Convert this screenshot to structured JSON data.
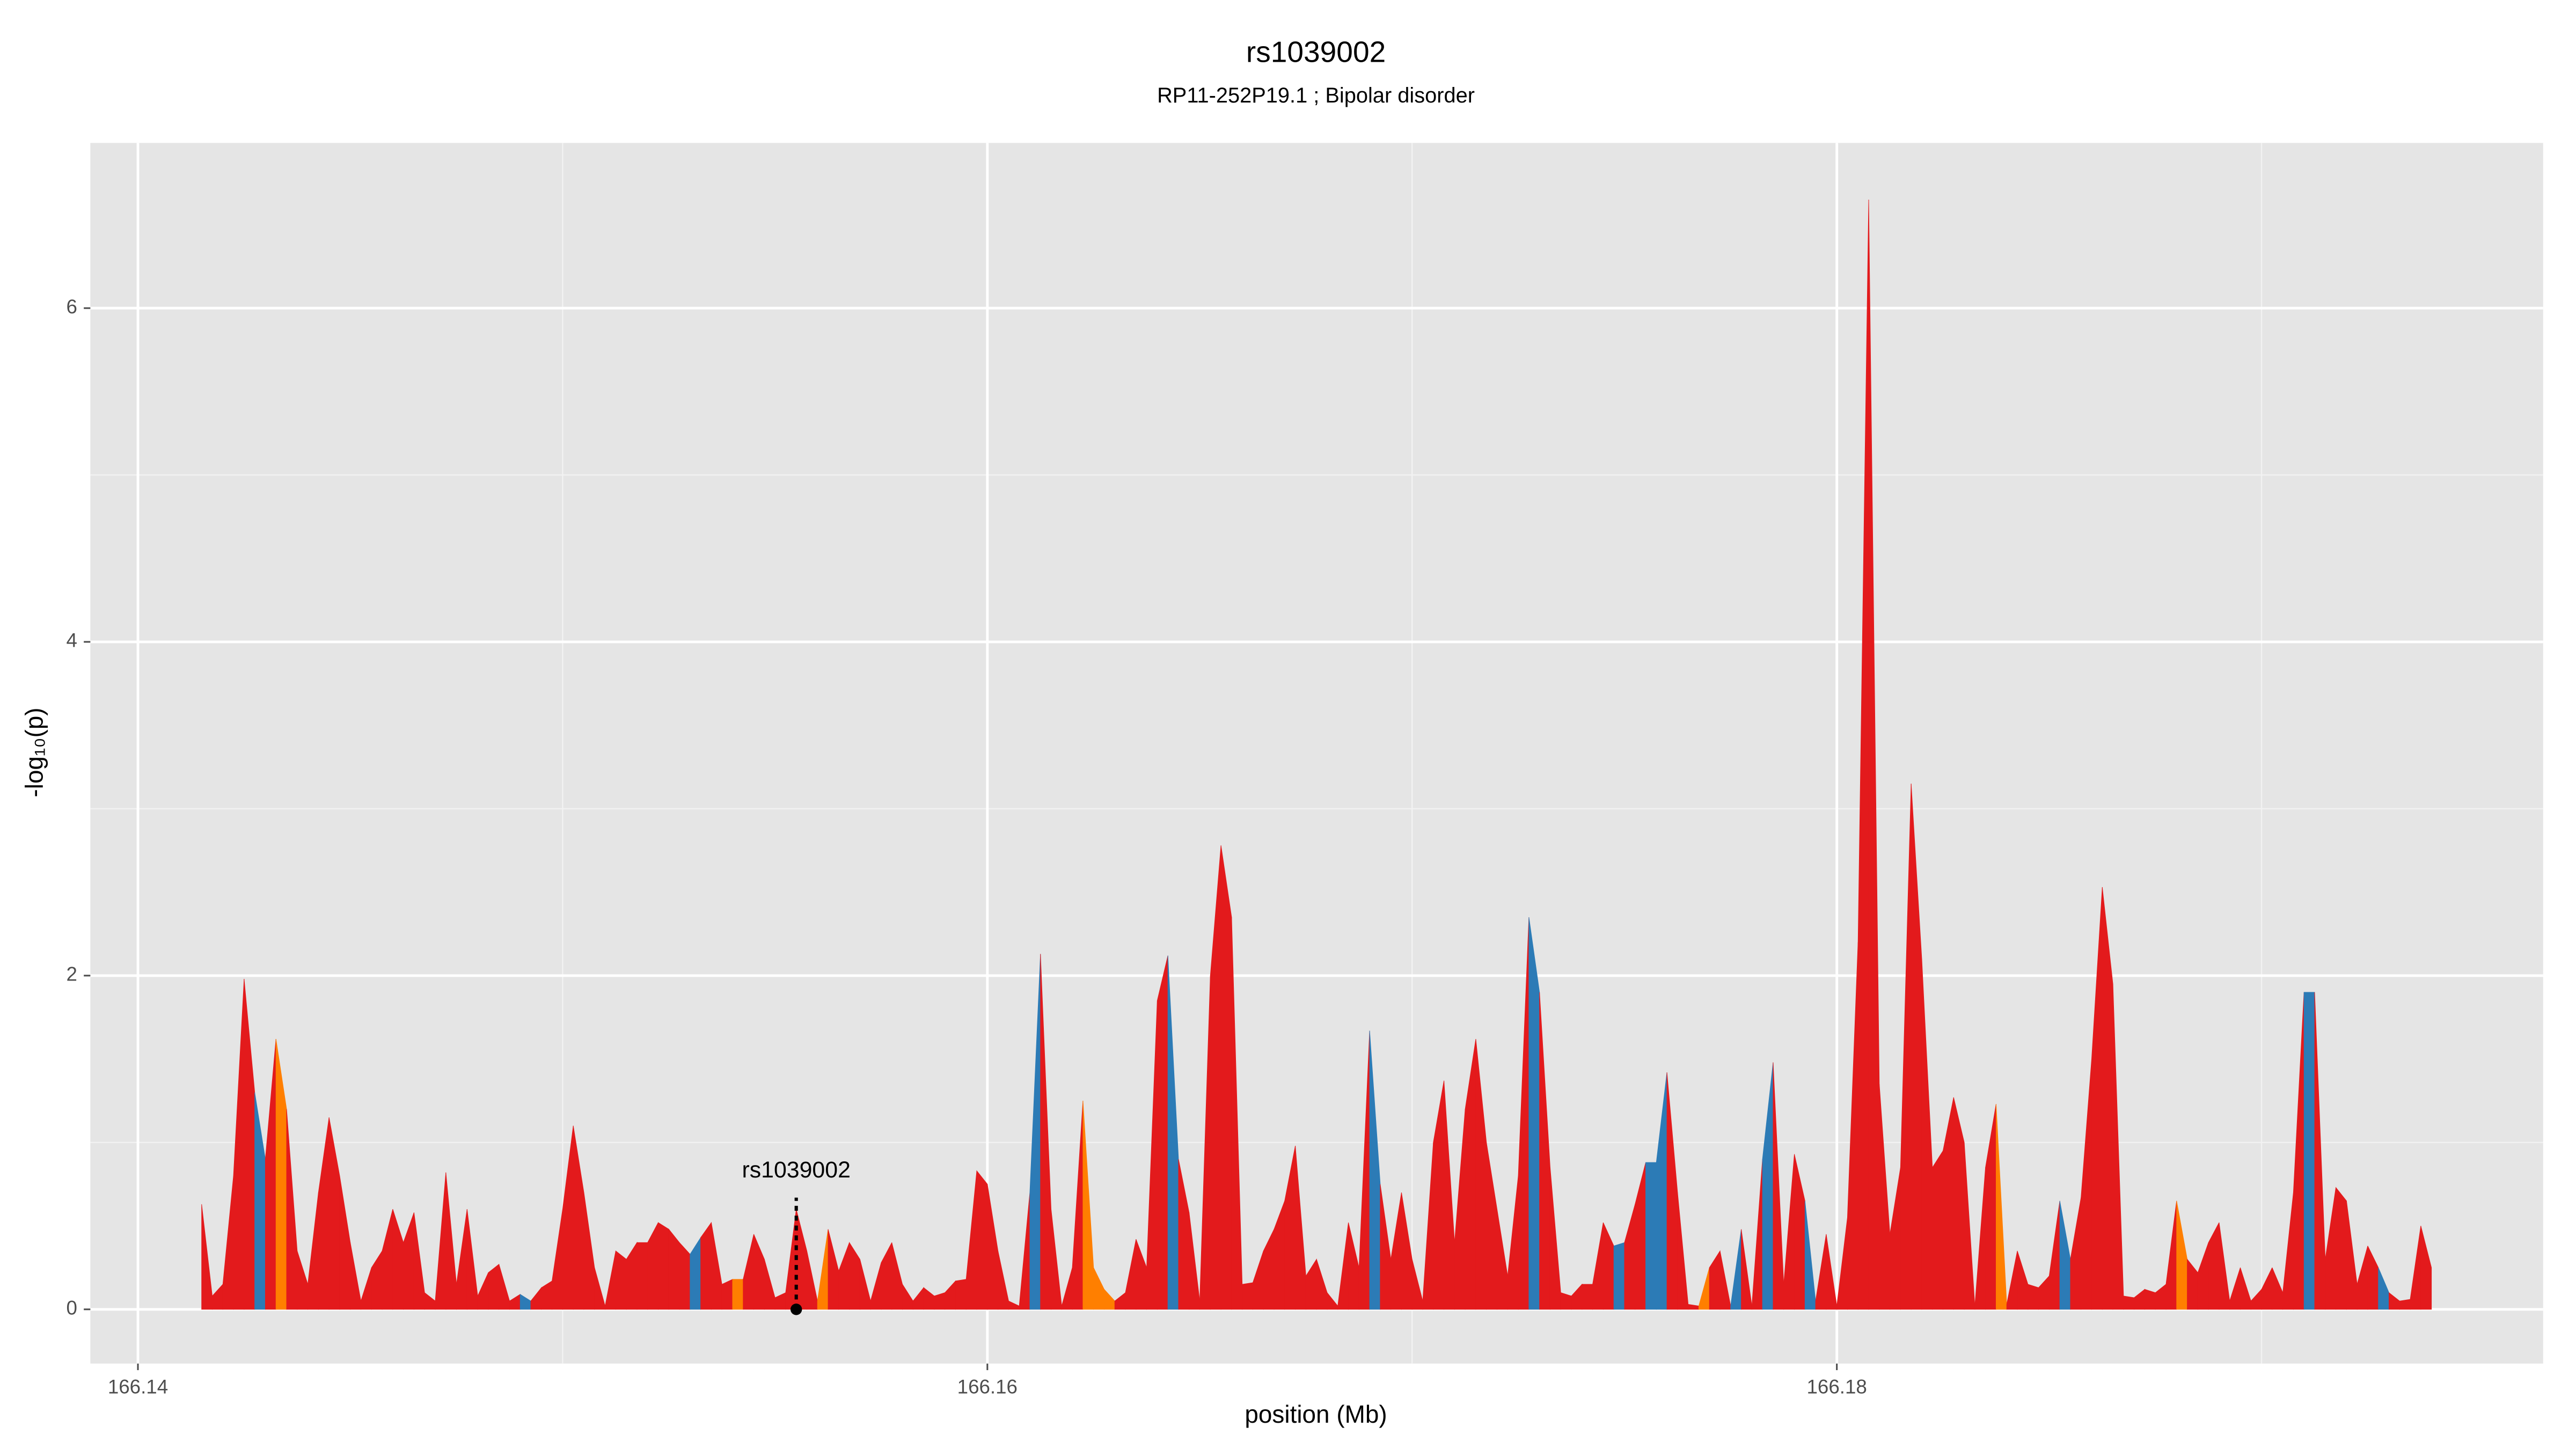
{
  "chart_data": {
    "type": "area",
    "title": "rs1039002",
    "subtitle": "RP11-252P19.1 ; Bipolar disorder",
    "xlabel": "position (Mb)",
    "ylabel": "-log₁₀(p)",
    "xlim": [
      166.13888,
      166.19663
    ],
    "ylim": [
      -0.325,
      6.99
    ],
    "xticks": [
      166.14,
      166.16,
      166.18
    ],
    "yticks": [
      0,
      2,
      4,
      6
    ],
    "grid": true,
    "background": "#e5e5e5",
    "annotation": {
      "text": "rs1039002",
      "x": 166.1555,
      "y": 0
    },
    "x": [
      166.1415,
      166.14175,
      166.142,
      166.14225,
      166.1425,
      166.14275,
      166.143,
      166.14325,
      166.1435,
      166.14375,
      166.144,
      166.14425,
      166.1445,
      166.14475,
      166.145,
      166.14525,
      166.1455,
      166.14575,
      166.146,
      166.14625,
      166.1465,
      166.14675,
      166.147,
      166.14725,
      166.1475,
      166.14775,
      166.148,
      166.14825,
      166.1485,
      166.14875,
      166.149,
      166.14925,
      166.1495,
      166.14975,
      166.15,
      166.15025,
      166.1505,
      166.15075,
      166.151,
      166.15125,
      166.1515,
      166.15175,
      166.152,
      166.15225,
      166.1525,
      166.15275,
      166.153,
      166.15325,
      166.1535,
      166.15375,
      166.154,
      166.15425,
      166.1545,
      166.15475,
      166.155,
      166.15525,
      166.1555,
      166.15575,
      166.156,
      166.15625,
      166.1565,
      166.15675,
      166.157,
      166.15725,
      166.1575,
      166.15775,
      166.158,
      166.15825,
      166.1585,
      166.15875,
      166.159,
      166.15925,
      166.1595,
      166.15975,
      166.16,
      166.16025,
      166.1605,
      166.16075,
      166.161,
      166.16125,
      166.1615,
      166.16175,
      166.162,
      166.16225,
      166.1625,
      166.16275,
      166.163,
      166.16325,
      166.1635,
      166.16375,
      166.164,
      166.16425,
      166.1645,
      166.16475,
      166.165,
      166.16525,
      166.1655,
      166.16575,
      166.166,
      166.16625,
      166.1665,
      166.16675,
      166.167,
      166.16725,
      166.1675,
      166.16775,
      166.168,
      166.16825,
      166.1685,
      166.16875,
      166.169,
      166.16925,
      166.1695,
      166.16975,
      166.17,
      166.17025,
      166.1705,
      166.17075,
      166.171,
      166.17125,
      166.1715,
      166.17175,
      166.172,
      166.17225,
      166.1725,
      166.17275,
      166.173,
      166.17325,
      166.1735,
      166.17375,
      166.174,
      166.17425,
      166.1745,
      166.17475,
      166.175,
      166.17525,
      166.1755,
      166.17575,
      166.176,
      166.17625,
      166.1765,
      166.17675,
      166.177,
      166.17725,
      166.1775,
      166.17775,
      166.178,
      166.17825,
      166.1785,
      166.17875,
      166.179,
      166.17925,
      166.1795,
      166.17975,
      166.18,
      166.18025,
      166.1805,
      166.18075,
      166.181,
      166.18125,
      166.1815,
      166.18175,
      166.182,
      166.18225,
      166.1825,
      166.18275,
      166.183,
      166.18325,
      166.1835,
      166.18375,
      166.184,
      166.18425,
      166.1845,
      166.18475,
      166.185,
      166.18525,
      166.1855,
      166.18575,
      166.186,
      166.18625,
      166.1865,
      166.18675,
      166.187,
      166.18725,
      166.1875,
      166.18775,
      166.188,
      166.18825,
      166.1885,
      166.18875,
      166.189,
      166.18925,
      166.1895,
      166.18975,
      166.19,
      166.19025,
      166.1905,
      166.19075,
      166.191,
      166.19125,
      166.1915,
      166.19175,
      166.192,
      166.19225,
      166.1925,
      166.19275,
      166.193,
      166.19325,
      166.1935,
      166.19375,
      166.194
    ],
    "values": [
      0.63,
      0.08,
      0.15,
      0.8,
      1.98,
      1.3,
      0.9,
      1.62,
      1.2,
      0.35,
      0.15,
      0.7,
      1.15,
      0.8,
      0.4,
      0.05,
      0.25,
      0.35,
      0.6,
      0.4,
      0.58,
      0.1,
      0.05,
      0.82,
      0.15,
      0.6,
      0.08,
      0.22,
      0.27,
      0.05,
      0.09,
      0.05,
      0.13,
      0.17,
      0.6,
      1.1,
      0.7,
      0.25,
      0.02,
      0.35,
      0.3,
      0.4,
      0.4,
      0.52,
      0.48,
      0.4,
      0.33,
      0.43,
      0.52,
      0.15,
      0.18,
      0.18,
      0.45,
      0.3,
      0.07,
      0.1,
      0.6,
      0.35,
      0.05,
      0.48,
      0.23,
      0.4,
      0.3,
      0.05,
      0.28,
      0.4,
      0.15,
      0.05,
      0.13,
      0.08,
      0.1,
      0.17,
      0.18,
      0.83,
      0.75,
      0.35,
      0.05,
      0.02,
      0.7,
      2.13,
      0.6,
      0.02,
      0.25,
      1.25,
      0.25,
      0.12,
      0.05,
      0.1,
      0.42,
      0.25,
      1.85,
      2.12,
      0.9,
      0.58,
      0.05,
      2.0,
      2.78,
      2.35,
      0.15,
      0.16,
      0.35,
      0.48,
      0.65,
      0.98,
      0.2,
      0.3,
      0.1,
      0.02,
      0.52,
      0.25,
      1.67,
      0.75,
      0.3,
      0.7,
      0.3,
      0.05,
      1.0,
      1.37,
      0.4,
      1.2,
      1.62,
      1.0,
      0.6,
      0.2,
      0.8,
      2.35,
      1.9,
      0.85,
      0.1,
      0.08,
      0.15,
      0.15,
      0.52,
      0.38,
      0.4,
      0.63,
      0.88,
      0.88,
      1.42,
      0.7,
      0.03,
      0.02,
      0.25,
      0.35,
      0.02,
      0.48,
      0.02,
      0.9,
      1.48,
      0.15,
      0.93,
      0.65,
      0.05,
      0.45,
      0.02,
      0.55,
      2.2,
      6.65,
      1.35,
      0.45,
      0.85,
      3.15,
      2.1,
      0.85,
      0.95,
      1.27,
      1.0,
      0.02,
      0.85,
      1.23,
      0.03,
      0.35,
      0.15,
      0.13,
      0.2,
      0.65,
      0.3,
      0.67,
      1.5,
      2.53,
      1.95,
      0.08,
      0.07,
      0.12,
      0.1,
      0.15,
      0.65,
      0.3,
      0.22,
      0.4,
      0.52,
      0.05,
      0.25,
      0.05,
      0.12,
      0.25,
      0.1,
      0.7,
      1.9,
      1.9,
      0.3,
      0.73,
      0.65,
      0.15,
      0.38,
      0.25,
      0.1,
      0.05,
      0.06,
      0.5,
      0.25
    ],
    "colors": [
      "#e31a1c",
      "#e31a1c",
      "#e31a1c",
      "#e31a1c",
      "#e31a1c",
      "#2c7bb6",
      "#e31a1c",
      "#ff7f00",
      "#e31a1c",
      "#e31a1c",
      "#e31a1c",
      "#e31a1c",
      "#e31a1c",
      "#e31a1c",
      "#e31a1c",
      "#e31a1c",
      "#e31a1c",
      "#e31a1c",
      "#e31a1c",
      "#e31a1c",
      "#e31a1c",
      "#e31a1c",
      "#e31a1c",
      "#e31a1c",
      "#e31a1c",
      "#e31a1c",
      "#e31a1c",
      "#e31a1c",
      "#e31a1c",
      "#e31a1c",
      "#2c7bb6",
      "#e31a1c",
      "#e31a1c",
      "#e31a1c",
      "#e31a1c",
      "#e31a1c",
      "#e31a1c",
      "#e31a1c",
      "#e31a1c",
      "#e31a1c",
      "#e31a1c",
      "#e31a1c",
      "#e31a1c",
      "#e31a1c",
      "#e31a1c",
      "#e31a1c",
      "#2c7bb6",
      "#e31a1c",
      "#e31a1c",
      "#e31a1c",
      "#ff7f00",
      "#e31a1c",
      "#e31a1c",
      "#e31a1c",
      "#e31a1c",
      "#e31a1c",
      "#e31a1c",
      "#e31a1c",
      "#ff7f00",
      "#e31a1c",
      "#e31a1c",
      "#e31a1c",
      "#e31a1c",
      "#e31a1c",
      "#e31a1c",
      "#e31a1c",
      "#e31a1c",
      "#e31a1c",
      "#e31a1c",
      "#e31a1c",
      "#e31a1c",
      "#e31a1c",
      "#e31a1c",
      "#e31a1c",
      "#e31a1c",
      "#e31a1c",
      "#e31a1c",
      "#e31a1c",
      "#2c7bb6",
      "#e31a1c",
      "#e31a1c",
      "#e31a1c",
      "#e31a1c",
      "#ff7f00",
      "#ff7f00",
      "#ff7f00",
      "#e31a1c",
      "#e31a1c",
      "#e31a1c",
      "#e31a1c",
      "#e31a1c",
      "#2c7bb6",
      "#e31a1c",
      "#e31a1c",
      "#e31a1c",
      "#e31a1c",
      "#e31a1c",
      "#e31a1c",
      "#e31a1c",
      "#e31a1c",
      "#e31a1c",
      "#e31a1c",
      "#e31a1c",
      "#e31a1c",
      "#e31a1c",
      "#e31a1c",
      "#e31a1c",
      "#e31a1c",
      "#e31a1c",
      "#e31a1c",
      "#2c7bb6",
      "#e31a1c",
      "#e31a1c",
      "#e31a1c",
      "#e31a1c",
      "#e31a1c",
      "#e31a1c",
      "#e31a1c",
      "#e31a1c",
      "#e31a1c",
      "#e31a1c",
      "#e31a1c",
      "#e31a1c",
      "#e31a1c",
      "#e31a1c",
      "#2c7bb6",
      "#e31a1c",
      "#e31a1c",
      "#e31a1c",
      "#e31a1c",
      "#e31a1c",
      "#e31a1c",
      "#e31a1c",
      "#2c7bb6",
      "#e31a1c",
      "#e31a1c",
      "#2c7bb6",
      "#2c7bb6",
      "#e31a1c",
      "#e31a1c",
      "#e31a1c",
      "#ff7f00",
      "#e31a1c",
      "#e31a1c",
      "#2c7bb6",
      "#e31a1c",
      "#e31a1c",
      "#2c7bb6",
      "#e31a1c",
      "#e31a1c",
      "#e31a1c",
      "#2c7bb6",
      "#e31a1c",
      "#e31a1c",
      "#e31a1c",
      "#e31a1c",
      "#e31a1c",
      "#e31a1c",
      "#e31a1c",
      "#e31a1c",
      "#e31a1c",
      "#e31a1c",
      "#e31a1c",
      "#e31a1c",
      "#e31a1c",
      "#e31a1c",
      "#e31a1c",
      "#e31a1c",
      "#e31a1c",
      "#ff7f00",
      "#e31a1c",
      "#e31a1c",
      "#e31a1c",
      "#e31a1c",
      "#e31a1c",
      "#2c7bb6",
      "#e31a1c",
      "#e31a1c",
      "#e31a1c",
      "#e31a1c",
      "#e31a1c",
      "#e31a1c",
      "#e31a1c",
      "#e31a1c",
      "#e31a1c",
      "#e31a1c",
      "#ff7f00",
      "#e31a1c",
      "#e31a1c",
      "#e31a1c",
      "#e31a1c",
      "#e31a1c",
      "#e31a1c",
      "#e31a1c",
      "#e31a1c",
      "#e31a1c",
      "#e31a1c",
      "#e31a1c",
      "#2c7bb6",
      "#e31a1c",
      "#e31a1c",
      "#e31a1c",
      "#e31a1c",
      "#e31a1c",
      "#e31a1c",
      "#2c7bb6",
      "#e31a1c",
      "#e31a1c",
      "#e31a1c",
      "#e31a1c",
      "#e31a1c"
    ]
  }
}
